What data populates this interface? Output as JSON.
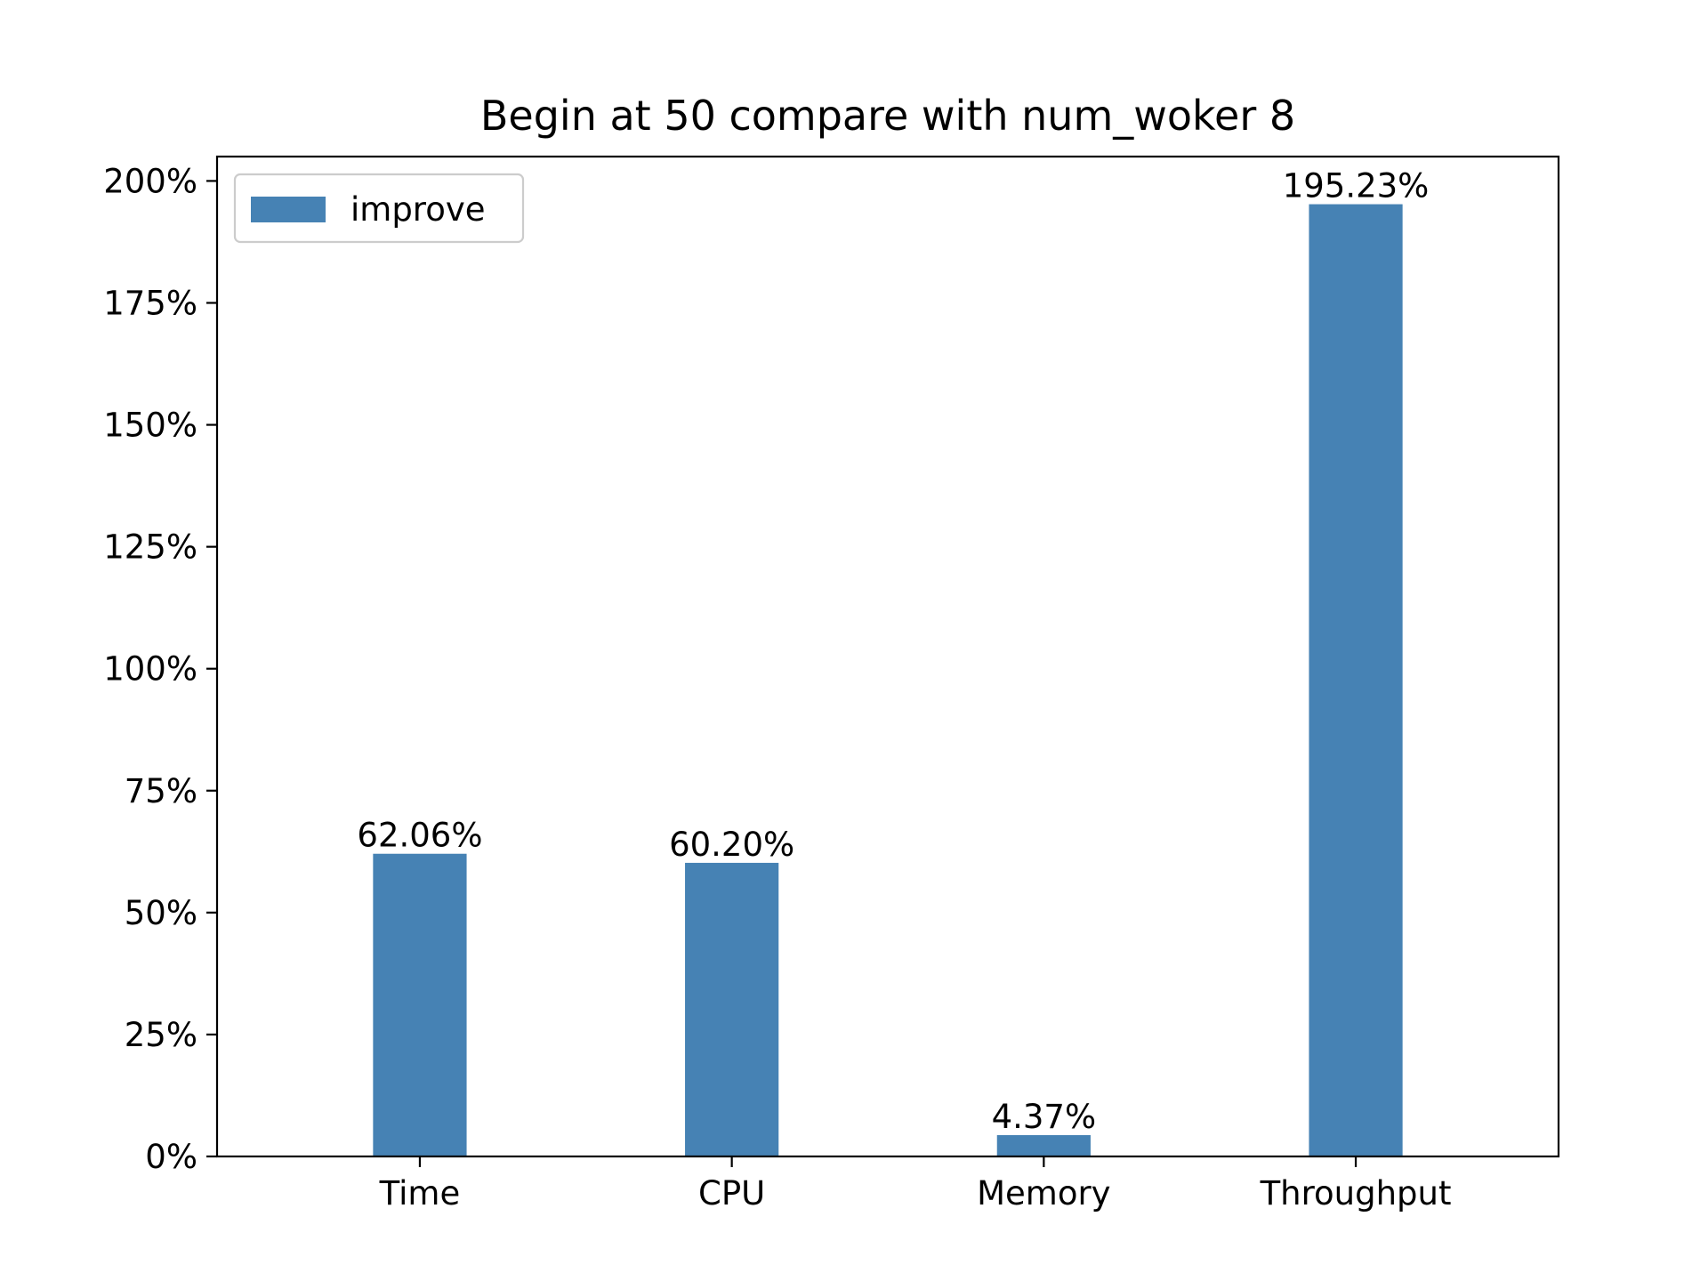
{
  "chart_data": {
    "type": "bar",
    "title": "Begin at 50 compare with num_woker 8",
    "xlabel": "",
    "ylabel": "",
    "categories": [
      "Time",
      "CPU",
      "Memory",
      "Throughput"
    ],
    "series": [
      {
        "name": "improve",
        "values": [
          62.06,
          60.2,
          4.37,
          195.23
        ],
        "value_labels": [
          "62.06%",
          "60.20%",
          "4.37%",
          "195.23%"
        ],
        "color": "#4682b4"
      }
    ],
    "ylim": [
      0,
      205
    ],
    "yticks": [
      0,
      25,
      50,
      75,
      100,
      125,
      150,
      175,
      200
    ],
    "ytick_labels": [
      "0%",
      "25%",
      "50%",
      "75%",
      "100%",
      "125%",
      "150%",
      "175%",
      "200%"
    ],
    "grid": false,
    "legend": {
      "position": "upper-left"
    }
  }
}
